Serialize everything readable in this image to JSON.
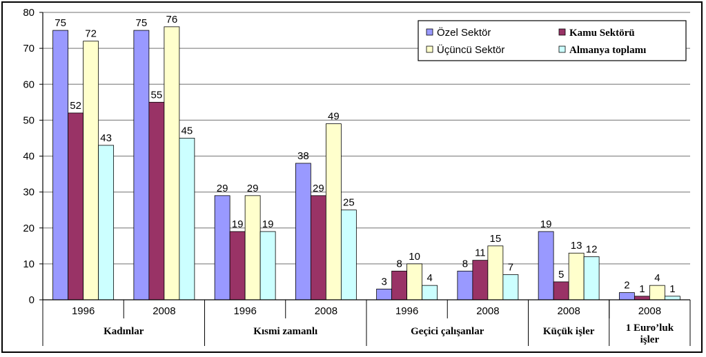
{
  "chart_data": {
    "type": "bar",
    "ylim": [
      0,
      80
    ],
    "yticks": [
      0,
      10,
      20,
      30,
      40,
      50,
      60,
      70,
      80
    ],
    "grid": true,
    "legend_position": "top-right",
    "categories": [
      {
        "year": "1996",
        "group": "Kadınlar"
      },
      {
        "year": "2008",
        "group": "Kadınlar"
      },
      {
        "year": "1996",
        "group": "Kısmi zamanlı"
      },
      {
        "year": "2008",
        "group": "Kısmi zamanlı"
      },
      {
        "year": "1996",
        "group": "Geçici çalışanlar"
      },
      {
        "year": "2008",
        "group": "Geçici çalışanlar"
      },
      {
        "year": "2008",
        "group": "Küçük işler"
      },
      {
        "year": "2008",
        "group": "1 Euro’luk işler"
      }
    ],
    "groups": [
      "Kadınlar",
      "Kısmi zamanlı",
      "Geçici çalışanlar",
      "Küçük işler",
      "1 Euro’luk işler"
    ],
    "series": [
      {
        "name": "Özel Sektör",
        "color": "#9999ff",
        "values": [
          75,
          75,
          29,
          38,
          3,
          8,
          19,
          2
        ]
      },
      {
        "name": "Kamu Sektörü",
        "color": "#993366",
        "values": [
          52,
          55,
          19,
          29,
          8,
          11,
          5,
          1
        ]
      },
      {
        "name": "Üçüncü Sektör",
        "color": "#ffffcc",
        "values": [
          72,
          76,
          29,
          49,
          10,
          15,
          13,
          4
        ]
      },
      {
        "name": "Almanya toplamı",
        "color": "#ccffff",
        "values": [
          43,
          45,
          19,
          25,
          4,
          7,
          12,
          1
        ]
      }
    ]
  }
}
